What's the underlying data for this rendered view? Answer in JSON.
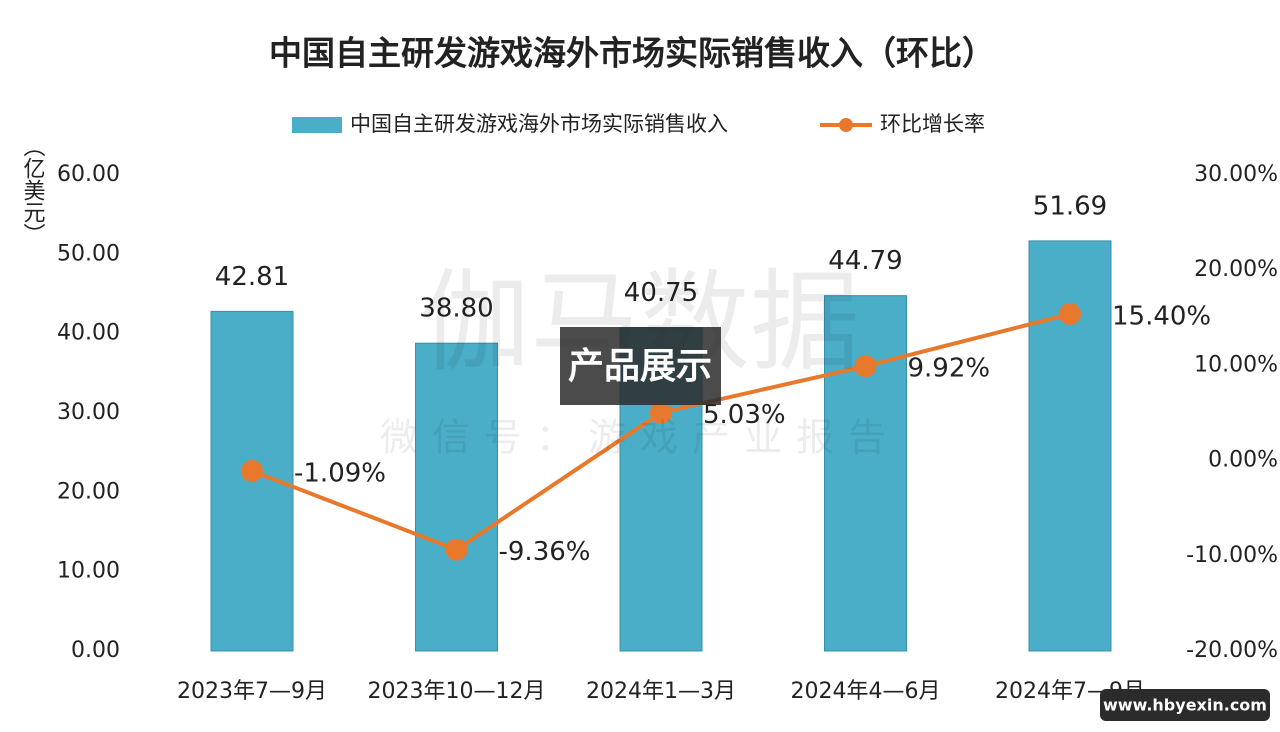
{
  "chart_data": {
    "type": "bar",
    "title": "中国自主研发游戏海外市场实际销售收入（环比）",
    "y_label": "（亿美元）",
    "categories": [
      "2023年7—9月",
      "2023年10—12月",
      "2024年1—3月",
      "2024年4—6月",
      "2024年7—9月"
    ],
    "series": [
      {
        "name": "中国自主研发游戏海外市场实际销售收入",
        "type": "bar",
        "color": "#4baec8",
        "values": [
          42.81,
          38.8,
          40.75,
          44.79,
          51.69
        ],
        "value_labels": [
          "42.81",
          "38.80",
          "40.75",
          "44.79",
          "51.69"
        ]
      },
      {
        "name": "环比增长率",
        "type": "line",
        "color": "#e8792c",
        "axis": "y2",
        "values": [
          -1.09,
          -9.36,
          5.03,
          9.92,
          15.4
        ],
        "value_labels": [
          "-1.09%",
          "-9.36%",
          "5.03%",
          "9.92%",
          "15.40%"
        ]
      }
    ],
    "ylim": [
      0,
      60
    ],
    "yticks": [
      {
        "value": 0,
        "label": "0.00"
      },
      {
        "value": 10,
        "label": "10.00"
      },
      {
        "value": 20,
        "label": "20.00"
      },
      {
        "value": 30,
        "label": "30.00"
      },
      {
        "value": 40,
        "label": "40.00"
      },
      {
        "value": 50,
        "label": "50.00"
      },
      {
        "value": 60,
        "label": "60.00"
      }
    ],
    "y2lim": [
      -20,
      30
    ],
    "y2ticks": [
      {
        "value": -20,
        "label": "-20.00%"
      },
      {
        "value": -10,
        "label": "-10.00%"
      },
      {
        "value": 0,
        "label": "0.00%"
      },
      {
        "value": 10,
        "label": "10.00%"
      },
      {
        "value": 20,
        "label": "20.00%"
      },
      {
        "value": 30,
        "label": "30.00%"
      }
    ],
    "grid": false,
    "legend": "top"
  },
  "overlay": {
    "watermark": "伽马数据",
    "watermark_sub": "微信号：游戏产业报告",
    "badge": "产品展示",
    "url": "www.hbyexin.com"
  }
}
